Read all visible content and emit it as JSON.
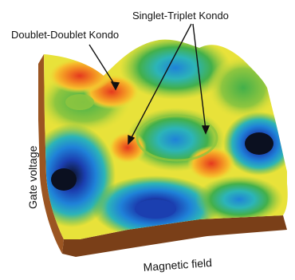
{
  "figure": {
    "annotations": {
      "doublet_doublet": "Doublet-Doublet Kondo",
      "singlet_triplet": "Singlet-Triplet Kondo"
    },
    "axes": {
      "y_label": "Gate voltage",
      "x_label": "Magnetic field"
    },
    "colormap": [
      "#0b1020",
      "#1b3fb0",
      "#1f82d8",
      "#2cb4b8",
      "#43b04a",
      "#8ec63f",
      "#e8e23a",
      "#f6c12d",
      "#f38a22",
      "#e5391e"
    ],
    "surface_base_color": "#8a4a1c"
  }
}
